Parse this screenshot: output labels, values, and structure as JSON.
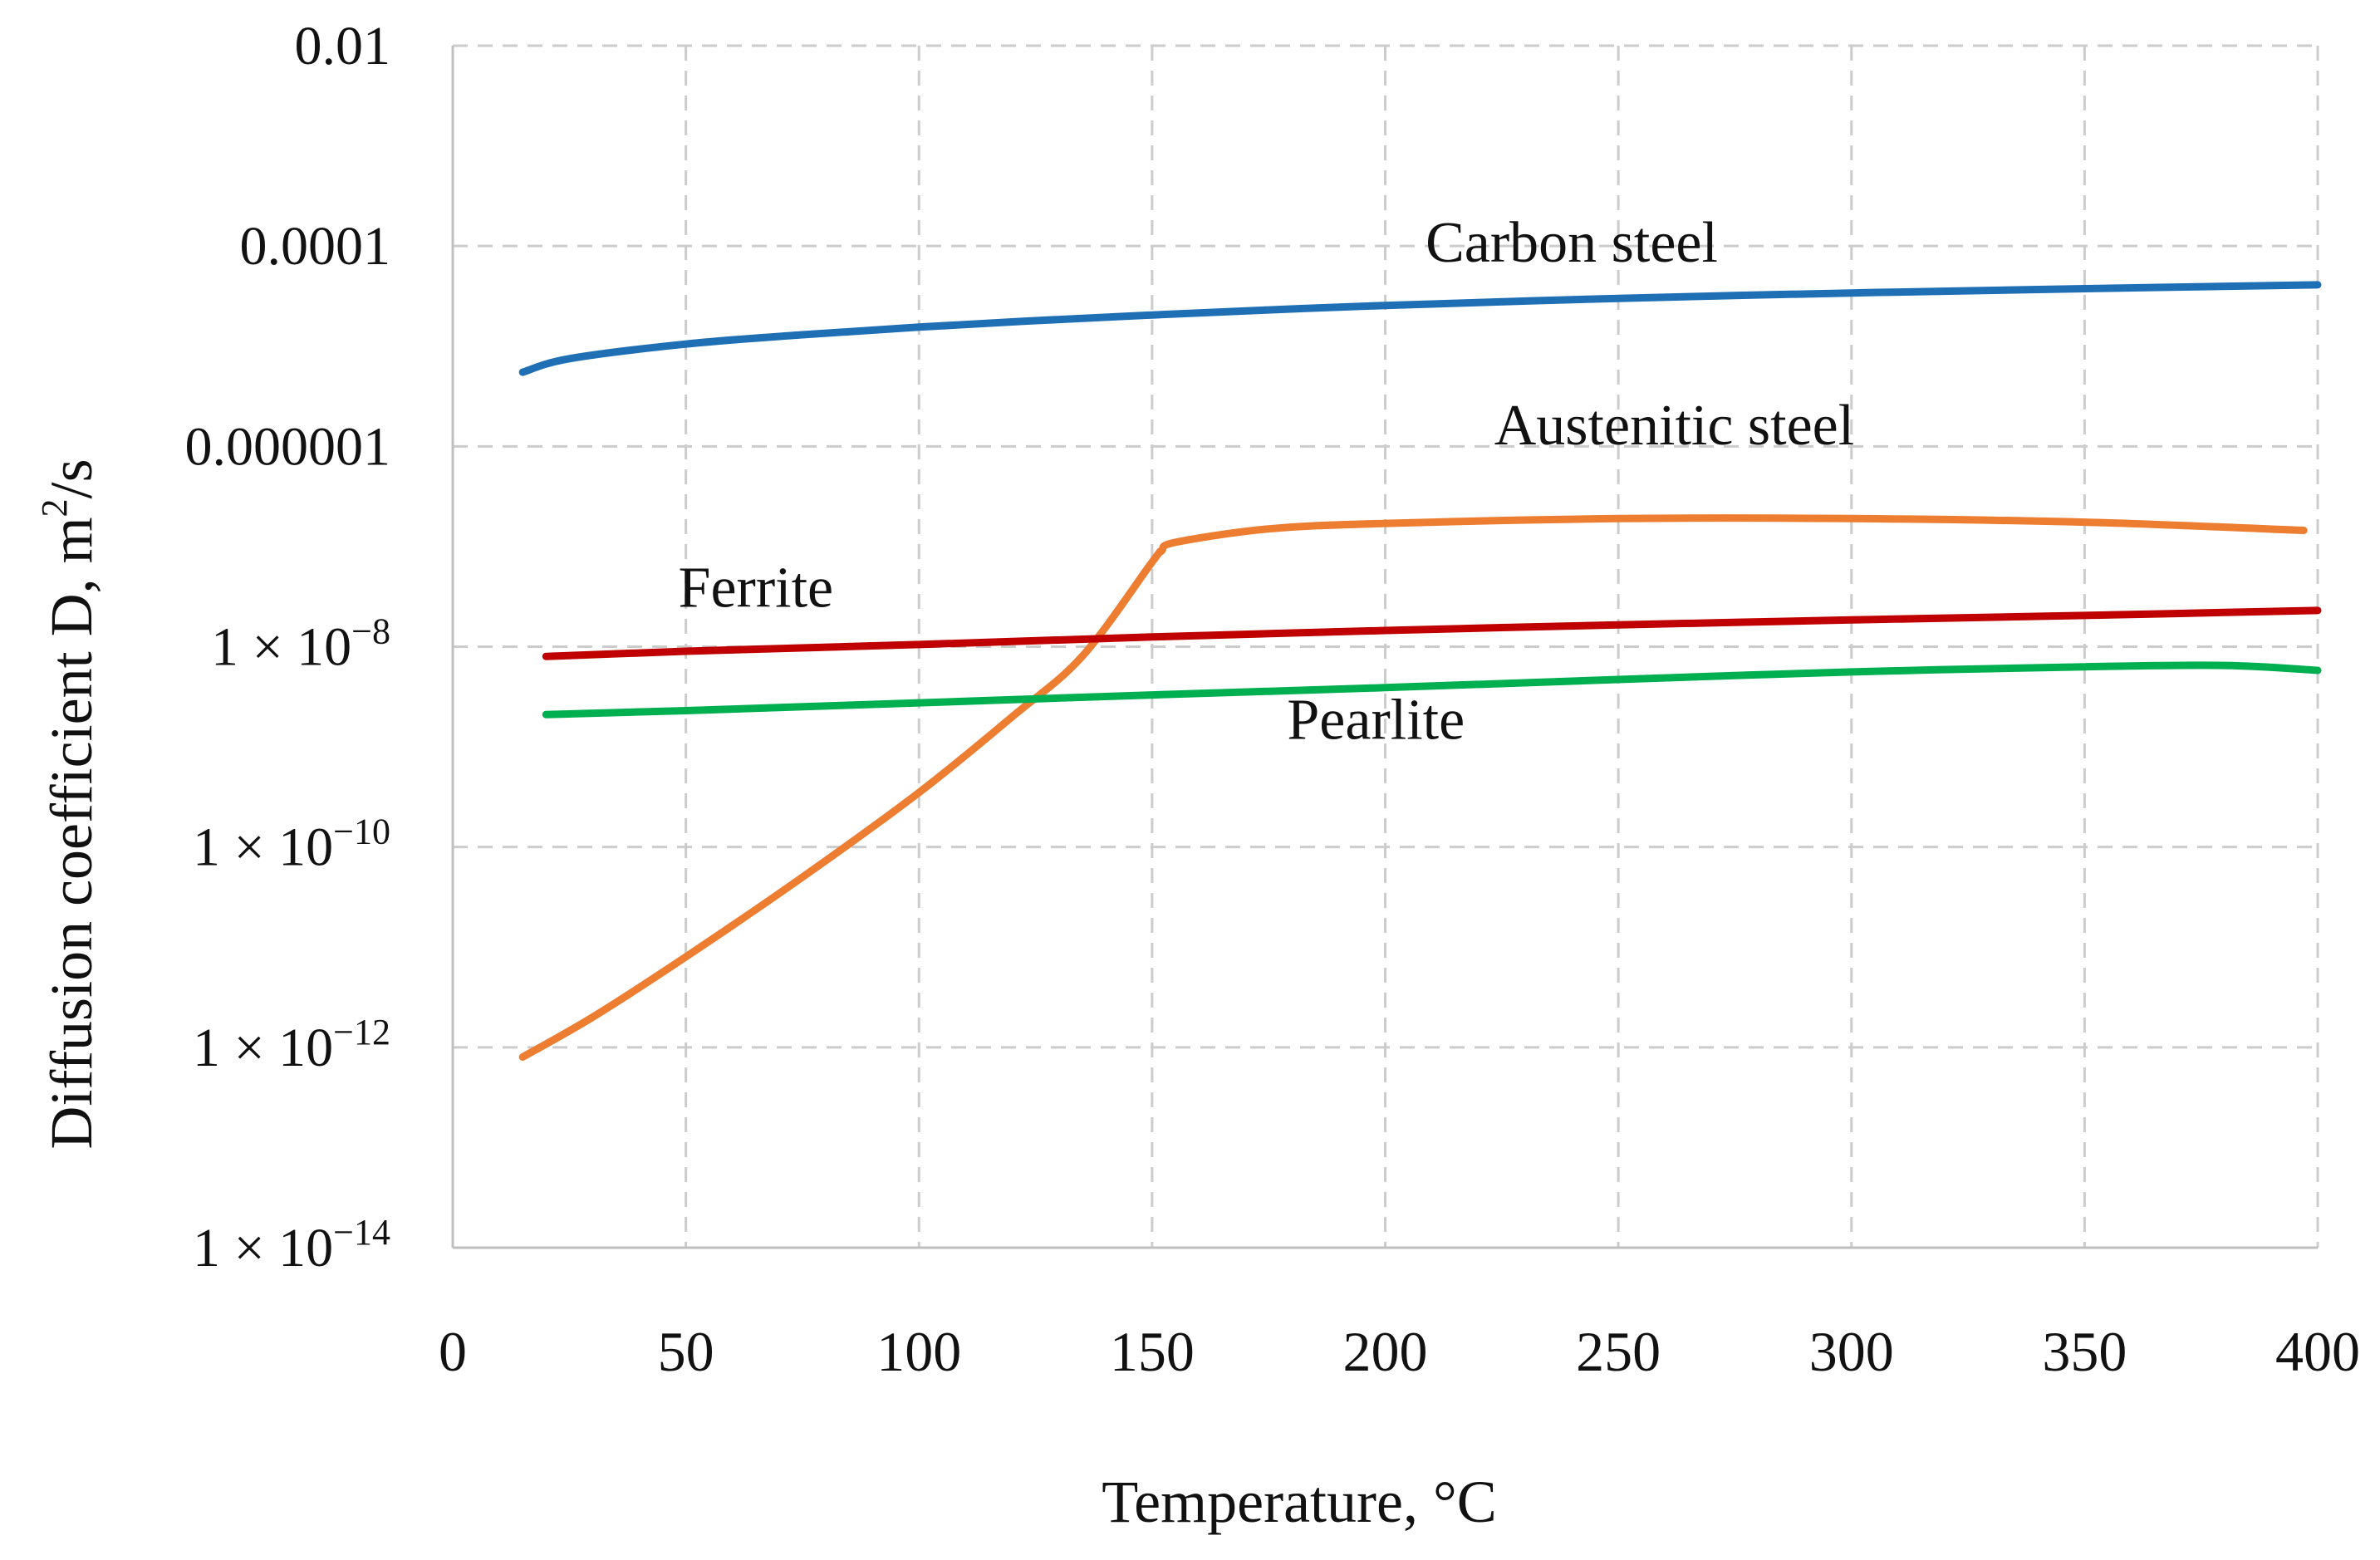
{
  "chart_data": {
    "type": "line",
    "title": "",
    "xlabel": "Temperature, °C",
    "ylabel": {
      "base": "Diffusion coefficient  D, m",
      "sup": "2",
      "tail": "/s"
    },
    "xlim": [
      0,
      400
    ],
    "ylim_log10": [
      -14,
      -2
    ],
    "yscale": "log",
    "grid": true,
    "x_ticks": [
      0,
      50,
      100,
      150,
      200,
      250,
      300,
      350,
      400
    ],
    "y_ticks": [
      {
        "exp": -2,
        "plain": "0.01"
      },
      {
        "exp": -4,
        "plain": "0.0001"
      },
      {
        "exp": -6,
        "plain": "0.000001"
      },
      {
        "exp": -8,
        "mant": "1 × 10",
        "sup": "−8"
      },
      {
        "exp": -10,
        "mant": "1 × 10",
        "sup": "−10"
      },
      {
        "exp": -12,
        "mant": "1 × 10",
        "sup": "−12"
      },
      {
        "exp": -14,
        "mant": "1 × 10",
        "sup": "−14"
      }
    ],
    "series": [
      {
        "name": "Carbon steel",
        "color": "#1f6fb5",
        "x": [
          15,
          25,
          50,
          75,
          100,
          125,
          150,
          175,
          200,
          250,
          300,
          350,
          400
        ],
        "y": [
          5.5e-06,
          7.5e-06,
          1.05e-05,
          1.3e-05,
          1.55e-05,
          1.8e-05,
          2.05e-05,
          2.3e-05,
          2.55e-05,
          3e-05,
          3.4e-05,
          3.75e-05,
          4.1e-05
        ],
        "label_at": [
          240,
          7e-05
        ]
      },
      {
        "name": "Austenitic steel",
        "color": "#ed7d31",
        "x": [
          15,
          30,
          50,
          75,
          100,
          120,
          135,
          150,
          152,
          155,
          175,
          200,
          250,
          300,
          350,
          397
        ],
        "y": [
          8e-13,
          2e-12,
          8e-12,
          5e-11,
          3.5e-10,
          2e-09,
          8e-09,
          7e-08,
          9e-08,
          1.1e-07,
          1.5e-07,
          1.7e-07,
          1.9e-07,
          1.9e-07,
          1.75e-07,
          1.45e-07
        ],
        "label_at": [
          262,
          1.05e-06
        ]
      },
      {
        "name": "Ferrite",
        "color": "#c00000",
        "x": [
          20,
          50,
          100,
          150,
          200,
          250,
          300,
          350,
          400
        ],
        "y": [
          8e-09,
          9e-09,
          1.05e-08,
          1.25e-08,
          1.45e-08,
          1.65e-08,
          1.85e-08,
          2.05e-08,
          2.3e-08
        ],
        "label_at": [
          65,
          2.5e-08
        ]
      },
      {
        "name": "Pearlite",
        "color": "#00b050",
        "x": [
          20,
          50,
          100,
          150,
          200,
          250,
          300,
          350,
          380,
          400
        ],
        "y": [
          2.1e-09,
          2.3e-09,
          2.75e-09,
          3.3e-09,
          3.9e-09,
          4.7e-09,
          5.6e-09,
          6.3e-09,
          6.5e-09,
          5.8e-09
        ],
        "label_at": [
          198,
          1.2e-09
        ]
      }
    ]
  }
}
